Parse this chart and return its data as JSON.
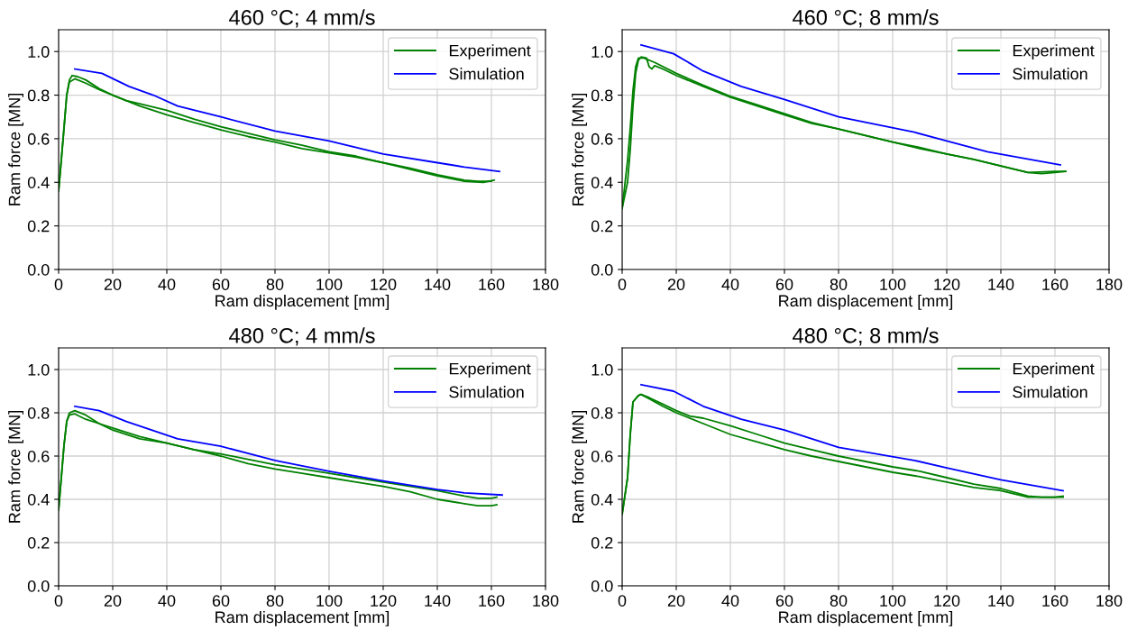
{
  "chart_data": [
    {
      "type": "line",
      "title": "460 °C; 4 mm/s",
      "xlabel": "Ram displacement [mm]",
      "ylabel": "Ram force [MN]",
      "xlim": [
        0,
        180
      ],
      "xticks": [
        0,
        20,
        40,
        60,
        80,
        100,
        120,
        140,
        160,
        180
      ],
      "ylim": [
        0,
        1.1
      ],
      "yticks": [
        {
          "value": 0,
          "label": "0.0"
        },
        {
          "value": 0.2,
          "label": "0.2"
        },
        {
          "value": 0.4,
          "label": "0.4"
        },
        {
          "value": 0.6,
          "label": "0.6"
        },
        {
          "value": 0.8,
          "label": "0.8"
        },
        {
          "value": 1,
          "label": "1.0"
        }
      ],
      "grid": true,
      "legend": "top right",
      "series": [
        {
          "name": "Experiment",
          "color": "#008000",
          "x": [
            0,
            1,
            2,
            3,
            4,
            5,
            7,
            10,
            15,
            20,
            25,
            30,
            40,
            50,
            60,
            70,
            80,
            90,
            100,
            110,
            120,
            130,
            140,
            150,
            155,
            160
          ],
          "values": [
            0.36,
            0.5,
            0.65,
            0.8,
            0.87,
            0.89,
            0.885,
            0.87,
            0.83,
            0.8,
            0.775,
            0.76,
            0.73,
            0.69,
            0.655,
            0.625,
            0.595,
            0.57,
            0.54,
            0.52,
            0.49,
            0.465,
            0.435,
            0.41,
            0.405,
            0.405
          ]
        },
        {
          "color": "#008000",
          "x": [
            0,
            2,
            3,
            4,
            6,
            10,
            15,
            20,
            30,
            40,
            50,
            60,
            70,
            80,
            90,
            100,
            110,
            120,
            130,
            140,
            150,
            157,
            161
          ],
          "values": [
            0.36,
            0.65,
            0.8,
            0.86,
            0.875,
            0.855,
            0.825,
            0.8,
            0.75,
            0.71,
            0.675,
            0.64,
            0.61,
            0.585,
            0.555,
            0.535,
            0.515,
            0.49,
            0.46,
            0.43,
            0.405,
            0.4,
            0.41
          ]
        },
        {
          "name": "Simulation",
          "color": "#0000ff",
          "x": [
            6,
            16,
            26,
            35,
            44,
            60,
            80,
            100,
            120,
            140,
            150,
            163
          ],
          "values": [
            0.92,
            0.9,
            0.84,
            0.8,
            0.75,
            0.7,
            0.635,
            0.59,
            0.53,
            0.49,
            0.47,
            0.45
          ]
        }
      ]
    },
    {
      "type": "line",
      "title": "460 °C; 8 mm/s",
      "xlabel": "Ram displacement [mm]",
      "ylabel": "Ram force [MN]",
      "xlim": [
        0,
        180
      ],
      "xticks": [
        0,
        20,
        40,
        60,
        80,
        100,
        120,
        140,
        160,
        180
      ],
      "ylim": [
        0,
        1.1
      ],
      "yticks": [
        {
          "value": 0,
          "label": "0.0"
        },
        {
          "value": 0.2,
          "label": "0.2"
        },
        {
          "value": 0.4,
          "label": "0.4"
        },
        {
          "value": 0.6,
          "label": "0.6"
        },
        {
          "value": 0.8,
          "label": "0.8"
        },
        {
          "value": 1,
          "label": "1.0"
        }
      ],
      "grid": true,
      "legend": "top right",
      "series": [
        {
          "name": "Experiment",
          "color": "#008000",
          "x": [
            0,
            2,
            3,
            4,
            5,
            6,
            7,
            9,
            10,
            11,
            12,
            15,
            20,
            30,
            40,
            50,
            60,
            70,
            80,
            90,
            100,
            110,
            120,
            130,
            140,
            150,
            155,
            160,
            164
          ],
          "values": [
            0.28,
            0.4,
            0.55,
            0.75,
            0.9,
            0.96,
            0.975,
            0.97,
            0.93,
            0.92,
            0.935,
            0.92,
            0.89,
            0.84,
            0.79,
            0.75,
            0.71,
            0.67,
            0.645,
            0.615,
            0.585,
            0.56,
            0.53,
            0.505,
            0.475,
            0.445,
            0.44,
            0.445,
            0.45
          ]
        },
        {
          "color": "#008000",
          "x": [
            0,
            2,
            3,
            4,
            5,
            6,
            8,
            12,
            20,
            30,
            40,
            50,
            60,
            70,
            80,
            90,
            100,
            110,
            120,
            130,
            140,
            150,
            160,
            164
          ],
          "values": [
            0.28,
            0.5,
            0.65,
            0.82,
            0.93,
            0.97,
            0.97,
            0.95,
            0.9,
            0.845,
            0.795,
            0.755,
            0.715,
            0.675,
            0.645,
            0.615,
            0.585,
            0.555,
            0.53,
            0.505,
            0.475,
            0.445,
            0.45,
            0.45
          ]
        },
        {
          "name": "Simulation",
          "color": "#0000ff",
          "x": [
            7,
            19,
            30,
            44,
            60,
            80,
            108,
            120,
            135,
            162
          ],
          "values": [
            1.03,
            0.99,
            0.91,
            0.84,
            0.78,
            0.7,
            0.63,
            0.59,
            0.54,
            0.48
          ]
        }
      ]
    },
    {
      "type": "line",
      "title": "480 °C; 4 mm/s",
      "xlabel": "Ram displacement [mm]",
      "ylabel": "Ram force [MN]",
      "xlim": [
        0,
        180
      ],
      "xticks": [
        0,
        20,
        40,
        60,
        80,
        100,
        120,
        140,
        160,
        180
      ],
      "ylim": [
        0,
        1.1
      ],
      "yticks": [
        {
          "value": 0,
          "label": "0.0"
        },
        {
          "value": 0.2,
          "label": "0.2"
        },
        {
          "value": 0.4,
          "label": "0.4"
        },
        {
          "value": 0.6,
          "label": "0.6"
        },
        {
          "value": 0.8,
          "label": "0.8"
        },
        {
          "value": 1,
          "label": "1.0"
        }
      ],
      "grid": true,
      "legend": "top right",
      "series": [
        {
          "name": "Experiment",
          "color": "#008000",
          "x": [
            0,
            2,
            3,
            4,
            6,
            10,
            15,
            20,
            30,
            40,
            50,
            60,
            70,
            80,
            90,
            100,
            110,
            120,
            130,
            140,
            150,
            155,
            160,
            162
          ],
          "values": [
            0.35,
            0.65,
            0.76,
            0.8,
            0.81,
            0.79,
            0.75,
            0.72,
            0.68,
            0.66,
            0.63,
            0.61,
            0.585,
            0.56,
            0.54,
            0.52,
            0.5,
            0.48,
            0.46,
            0.44,
            0.415,
            0.405,
            0.405,
            0.41
          ]
        },
        {
          "color": "#008000",
          "x": [
            0,
            2,
            3,
            4,
            6,
            10,
            15,
            20,
            30,
            40,
            50,
            60,
            70,
            80,
            90,
            100,
            110,
            120,
            130,
            140,
            150,
            155,
            160,
            162
          ],
          "values": [
            0.35,
            0.65,
            0.76,
            0.79,
            0.795,
            0.77,
            0.75,
            0.73,
            0.69,
            0.66,
            0.63,
            0.6,
            0.565,
            0.54,
            0.52,
            0.5,
            0.48,
            0.46,
            0.435,
            0.4,
            0.38,
            0.37,
            0.37,
            0.375
          ]
        },
        {
          "name": "Simulation",
          "color": "#0000ff",
          "x": [
            6,
            15,
            25,
            44,
            60,
            80,
            100,
            120,
            140,
            150,
            164
          ],
          "values": [
            0.83,
            0.81,
            0.76,
            0.68,
            0.645,
            0.58,
            0.53,
            0.485,
            0.445,
            0.43,
            0.42
          ]
        }
      ]
    },
    {
      "type": "line",
      "title": "480 °C; 8 mm/s",
      "xlabel": "Ram displacement [mm]",
      "ylabel": "Ram force [MN]",
      "xlim": [
        0,
        180
      ],
      "xticks": [
        0,
        20,
        40,
        60,
        80,
        100,
        120,
        140,
        160,
        180
      ],
      "ylim": [
        0,
        1.1
      ],
      "yticks": [
        {
          "value": 0,
          "label": "0.0"
        },
        {
          "value": 0.2,
          "label": "0.2"
        },
        {
          "value": 0.4,
          "label": "0.4"
        },
        {
          "value": 0.6,
          "label": "0.6"
        },
        {
          "value": 0.8,
          "label": "0.8"
        },
        {
          "value": 1,
          "label": "1.0"
        }
      ],
      "grid": true,
      "legend": "top right",
      "series": [
        {
          "name": "Experiment",
          "color": "#008000",
          "x": [
            0,
            2,
            3,
            4,
            6,
            7,
            10,
            15,
            20,
            25,
            30,
            40,
            50,
            60,
            70,
            80,
            90,
            100,
            110,
            120,
            130,
            140,
            150,
            155,
            160,
            163
          ],
          "values": [
            0.33,
            0.5,
            0.7,
            0.85,
            0.88,
            0.885,
            0.87,
            0.84,
            0.81,
            0.785,
            0.775,
            0.74,
            0.7,
            0.66,
            0.63,
            0.6,
            0.575,
            0.55,
            0.53,
            0.5,
            0.47,
            0.45,
            0.415,
            0.41,
            0.41,
            0.415
          ]
        },
        {
          "color": "#008000",
          "x": [
            0,
            2,
            3,
            4,
            6,
            7,
            10,
            15,
            20,
            30,
            40,
            50,
            60,
            70,
            80,
            90,
            100,
            110,
            120,
            130,
            140,
            150,
            160,
            163
          ],
          "values": [
            0.33,
            0.5,
            0.7,
            0.85,
            0.88,
            0.885,
            0.865,
            0.83,
            0.8,
            0.75,
            0.7,
            0.665,
            0.63,
            0.6,
            0.575,
            0.55,
            0.525,
            0.505,
            0.48,
            0.455,
            0.44,
            0.41,
            0.41,
            0.41
          ]
        },
        {
          "name": "Simulation",
          "color": "#0000ff",
          "x": [
            7,
            19,
            30,
            44,
            60,
            80,
            108,
            120,
            140,
            163
          ],
          "values": [
            0.93,
            0.9,
            0.83,
            0.77,
            0.72,
            0.64,
            0.58,
            0.545,
            0.49,
            0.44
          ]
        }
      ]
    }
  ]
}
